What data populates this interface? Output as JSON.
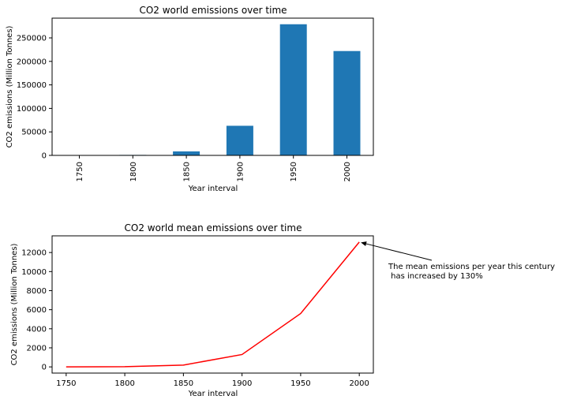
{
  "chart_data": [
    {
      "type": "bar",
      "title": "CO2 world emissions over time",
      "xlabel": "Year interval",
      "ylabel": "CO2 emissions (Million Tonnes)",
      "categories": [
        "1750",
        "1800",
        "1850",
        "1900",
        "1950",
        "2000"
      ],
      "values": [
        50,
        1000,
        8500,
        63000,
        279000,
        222000
      ],
      "ylim": [
        0,
        292000
      ],
      "yticks": [
        0,
        50000,
        100000,
        150000,
        200000,
        250000
      ],
      "bar_color": "#1f77b4",
      "grid": false
    },
    {
      "type": "line",
      "title": "CO2 world mean emissions over time",
      "xlabel": "Year interval",
      "ylabel": "CO2 emissions (Million Tonnes)",
      "x": [
        1750,
        1800,
        1850,
        1900,
        1950,
        2000
      ],
      "y": [
        5,
        25,
        190,
        1300,
        5600,
        13100
      ],
      "xlim": [
        1738,
        2012
      ],
      "ylim": [
        -650,
        13750
      ],
      "xticks": [
        1750,
        1800,
        1850,
        1900,
        1950,
        2000
      ],
      "yticks": [
        0,
        2000,
        4000,
        6000,
        8000,
        10000,
        12000
      ],
      "line_color": "#ff0000",
      "grid": false,
      "annotation": {
        "text_lines": [
          "The mean emissions per year this century",
          " has increased by 130%"
        ],
        "point": [
          2000,
          13100
        ]
      }
    }
  ]
}
